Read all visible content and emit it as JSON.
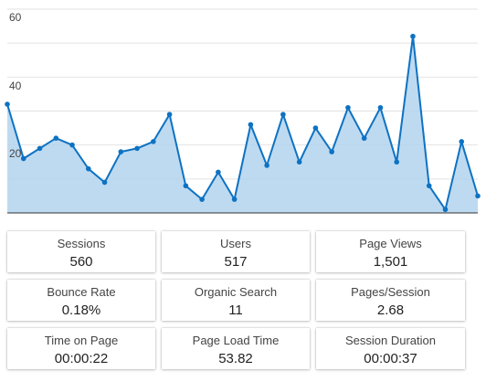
{
  "chart_data": {
    "type": "area",
    "title": "",
    "xlabel": "",
    "ylabel": "",
    "ylim": [
      0,
      60
    ],
    "y_ticks": [
      "60",
      "40",
      "20"
    ],
    "grid": true,
    "legend": "none",
    "colors": {
      "line": "#0e72c2",
      "fill": "#b3d4ee",
      "grid": "#e2e2e2"
    },
    "series": [
      {
        "values": [
          32,
          16,
          19,
          22,
          20,
          13,
          9,
          18,
          19,
          21,
          29,
          8,
          4,
          12,
          4,
          26,
          14,
          29,
          15,
          25,
          18,
          31,
          22,
          31,
          15,
          52,
          8,
          1,
          21,
          5
        ]
      }
    ]
  },
  "metrics": [
    {
      "label": "Sessions",
      "value": "560"
    },
    {
      "label": "Users",
      "value": "517"
    },
    {
      "label": "Page Views",
      "value": "1,501"
    },
    {
      "label": "Bounce Rate",
      "value": "0.18%"
    },
    {
      "label": "Organic Search",
      "value": "11"
    },
    {
      "label": "Pages/Session",
      "value": "2.68"
    },
    {
      "label": "Time on Page",
      "value": "00:00:22"
    },
    {
      "label": "Page Load Time",
      "value": "53.82"
    },
    {
      "label": "Session Duration",
      "value": "00:00:37"
    }
  ]
}
